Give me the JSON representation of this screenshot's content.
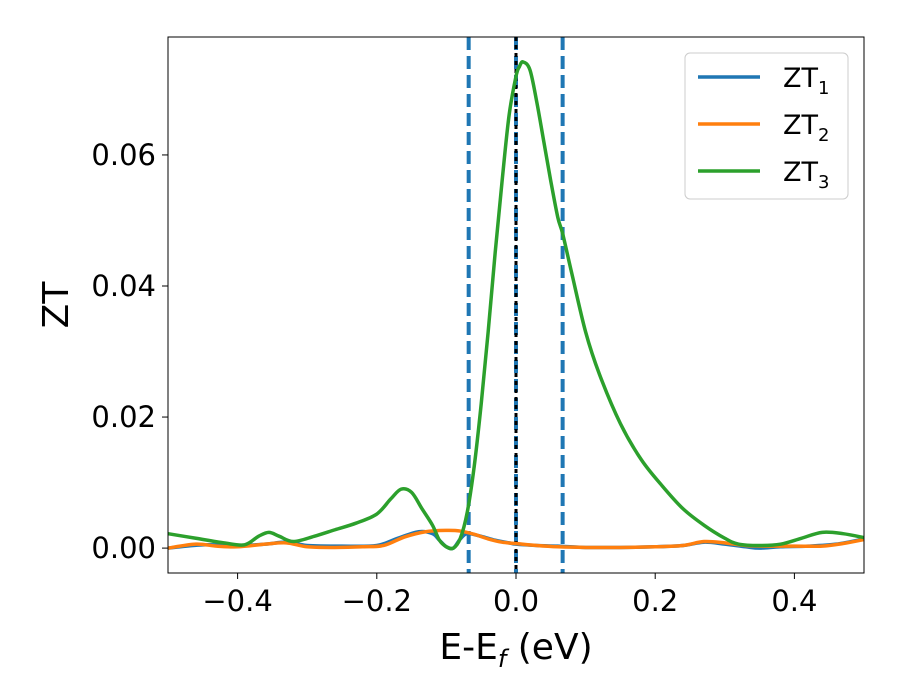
{
  "chart_data": {
    "type": "line",
    "xlabel": {
      "main": "E-E",
      "sub": "f",
      "suffix": " (eV)"
    },
    "ylabel": "ZT",
    "xlim": [
      -0.5,
      0.5
    ],
    "ylim": [
      -0.0038,
      0.078
    ],
    "xticks": [
      -0.4,
      -0.2,
      0.0,
      0.2,
      0.4
    ],
    "xtick_labels": [
      "−0.4",
      "−0.2",
      "0.0",
      "0.2",
      "0.4"
    ],
    "yticks": [
      0.0,
      0.02,
      0.04,
      0.06
    ],
    "ytick_labels": [
      "0.00",
      "0.02",
      "0.04",
      "0.06"
    ],
    "grid": false,
    "legend_position": "top-right",
    "vertical_lines": [
      {
        "x": -0.068,
        "style": "dashed",
        "color": "#1f77b4"
      },
      {
        "x": 0.0,
        "style": "dashed",
        "color": "#1f77b4"
      },
      {
        "x": 0.067,
        "style": "dashed",
        "color": "#1f77b4"
      },
      {
        "x": 0.0,
        "style": "dotted",
        "color": "#000000"
      }
    ],
    "series": [
      {
        "name": "ZT",
        "name_sub": "1",
        "color": "#1f77b4",
        "points": [
          [
            -0.5,
            0.0
          ],
          [
            -0.45,
            0.0005
          ],
          [
            -0.4,
            0.0004
          ],
          [
            -0.36,
            0.0006
          ],
          [
            -0.33,
            0.0009
          ],
          [
            -0.3,
            0.0004
          ],
          [
            -0.25,
            0.0003
          ],
          [
            -0.2,
            0.0004
          ],
          [
            -0.17,
            0.0015
          ],
          [
            -0.14,
            0.0025
          ],
          [
            -0.12,
            0.0022
          ],
          [
            -0.11,
            0.0012
          ],
          [
            -0.1,
            0.0002
          ],
          [
            -0.09,
            0.0
          ],
          [
            -0.08,
            0.0014
          ],
          [
            -0.07,
            0.0022
          ],
          [
            -0.05,
            0.0018
          ],
          [
            -0.03,
            0.0012
          ],
          [
            -0.01,
            0.0008
          ],
          [
            0.0,
            0.0006
          ],
          [
            0.03,
            0.0004
          ],
          [
            0.06,
            0.0003
          ],
          [
            0.1,
            0.0001
          ],
          [
            0.15,
            0.0001
          ],
          [
            0.2,
            0.0002
          ],
          [
            0.24,
            0.0004
          ],
          [
            0.27,
            0.0009
          ],
          [
            0.3,
            0.0006
          ],
          [
            0.33,
            0.0002
          ],
          [
            0.35,
            0.0
          ],
          [
            0.38,
            0.0002
          ],
          [
            0.42,
            0.0003
          ],
          [
            0.46,
            0.0006
          ],
          [
            0.5,
            0.0014
          ]
        ]
      },
      {
        "name": "ZT",
        "name_sub": "2",
        "color": "#ff7f0e",
        "points": [
          [
            -0.5,
            0.0
          ],
          [
            -0.46,
            0.0006
          ],
          [
            -0.43,
            0.0003
          ],
          [
            -0.4,
            0.0002
          ],
          [
            -0.36,
            0.0006
          ],
          [
            -0.33,
            0.0008
          ],
          [
            -0.3,
            0.0002
          ],
          [
            -0.26,
            0.0001
          ],
          [
            -0.22,
            0.0002
          ],
          [
            -0.19,
            0.0004
          ],
          [
            -0.16,
            0.0017
          ],
          [
            -0.13,
            0.0025
          ],
          [
            -0.1,
            0.0027
          ],
          [
            -0.08,
            0.0026
          ],
          [
            -0.06,
            0.0021
          ],
          [
            -0.04,
            0.0014
          ],
          [
            -0.02,
            0.0009
          ],
          [
            0.0,
            0.0007
          ],
          [
            0.03,
            0.0004
          ],
          [
            0.06,
            0.0002
          ],
          [
            0.1,
            0.0001
          ],
          [
            0.15,
            0.0001
          ],
          [
            0.2,
            0.0002
          ],
          [
            0.24,
            0.0004
          ],
          [
            0.27,
            0.001
          ],
          [
            0.3,
            0.0008
          ],
          [
            0.33,
            0.0004
          ],
          [
            0.36,
            0.0003
          ],
          [
            0.4,
            0.0003
          ],
          [
            0.44,
            0.0003
          ],
          [
            0.47,
            0.0007
          ],
          [
            0.5,
            0.0013
          ]
        ]
      },
      {
        "name": "ZT",
        "name_sub": "3",
        "color": "#2ca02c",
        "points": [
          [
            -0.5,
            0.0022
          ],
          [
            -0.46,
            0.0015
          ],
          [
            -0.42,
            0.0008
          ],
          [
            -0.39,
            0.0005
          ],
          [
            -0.37,
            0.0018
          ],
          [
            -0.355,
            0.0024
          ],
          [
            -0.34,
            0.0018
          ],
          [
            -0.32,
            0.001
          ],
          [
            -0.29,
            0.0018
          ],
          [
            -0.26,
            0.0028
          ],
          [
            -0.23,
            0.0038
          ],
          [
            -0.2,
            0.0052
          ],
          [
            -0.18,
            0.0075
          ],
          [
            -0.165,
            0.009
          ],
          [
            -0.15,
            0.0085
          ],
          [
            -0.135,
            0.006
          ],
          [
            -0.12,
            0.0035
          ],
          [
            -0.11,
            0.0012
          ],
          [
            -0.1,
            0.0002
          ],
          [
            -0.09,
            0.0
          ],
          [
            -0.08,
            0.0015
          ],
          [
            -0.07,
            0.0055
          ],
          [
            -0.06,
            0.0125
          ],
          [
            -0.05,
            0.022
          ],
          [
            -0.04,
            0.033
          ],
          [
            -0.03,
            0.045
          ],
          [
            -0.02,
            0.056
          ],
          [
            -0.01,
            0.066
          ],
          [
            0.0,
            0.072
          ],
          [
            0.005,
            0.0735
          ],
          [
            0.01,
            0.0742
          ],
          [
            0.02,
            0.073
          ],
          [
            0.03,
            0.068
          ],
          [
            0.04,
            0.062
          ],
          [
            0.05,
            0.056
          ],
          [
            0.06,
            0.0505
          ],
          [
            0.067,
            0.048
          ],
          [
            0.08,
            0.042
          ],
          [
            0.1,
            0.033
          ],
          [
            0.12,
            0.0265
          ],
          [
            0.15,
            0.019
          ],
          [
            0.18,
            0.0135
          ],
          [
            0.21,
            0.0095
          ],
          [
            0.24,
            0.006
          ],
          [
            0.27,
            0.0035
          ],
          [
            0.3,
            0.0015
          ],
          [
            0.32,
            0.0006
          ],
          [
            0.35,
            0.0004
          ],
          [
            0.38,
            0.0006
          ],
          [
            0.41,
            0.0015
          ],
          [
            0.44,
            0.0024
          ],
          [
            0.47,
            0.0022
          ],
          [
            0.5,
            0.0016
          ]
        ]
      }
    ]
  }
}
